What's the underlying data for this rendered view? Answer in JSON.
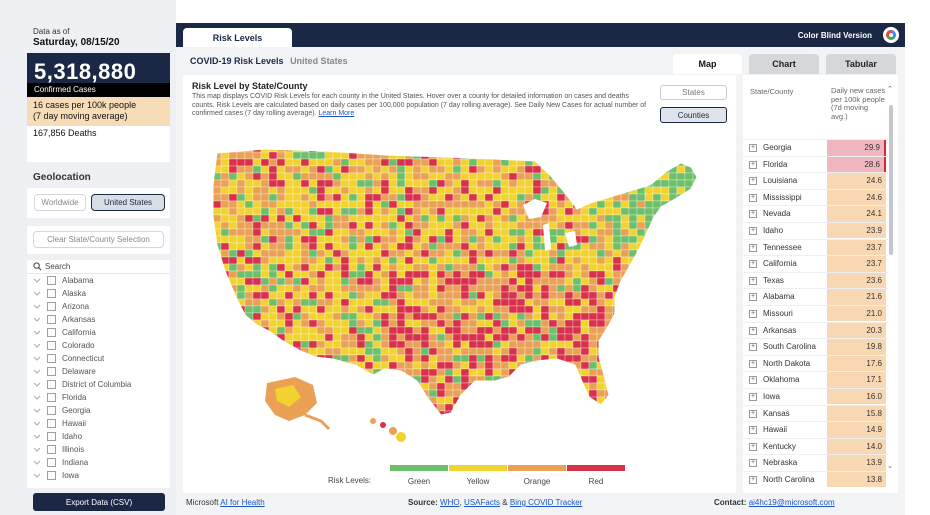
{
  "left": {
    "data_as_of_label": "Data as of",
    "data_date": "Saturday, 08/15/20",
    "confirmed_value": "5,318,880",
    "confirmed_label": "Confirmed Cases",
    "rate_line1": "16 cases per 100k people",
    "rate_line2": "(7 day moving average)",
    "deaths": "167,856 Deaths",
    "geolocation_label": "Geolocation",
    "geo_worldwide": "Worldwide",
    "geo_us": "United States",
    "clear_button": "Clear State/County Selection",
    "search_placeholder": "Search",
    "states": [
      "Alabama",
      "Alaska",
      "Arizona",
      "Arkansas",
      "California",
      "Colorado",
      "Connecticut",
      "Delaware",
      "District of Columbia",
      "Florida",
      "Georgia",
      "Hawaii",
      "Idaho",
      "Illinois",
      "Indiana",
      "Iowa"
    ],
    "export_button": "Export Data (CSV)"
  },
  "header": {
    "tab_label": "Risk Levels",
    "color_blind": "Color Blind Version"
  },
  "main": {
    "title": "COVID-19 Risk Levels",
    "subtitle": "United States",
    "view_tabs": [
      "Map",
      "Chart",
      "Tabular"
    ],
    "map_title": "Risk Level by State/County",
    "map_desc": "This map displays COVID Risk Levels for each county in the United States. Hover over a county for detailed information on cases and deaths counts. Risk Levels are calculated based on daily cases per 100,000 population (7 day rolling average). See Daily New Cases for actual number of confirmed cases (7 day rolling average).",
    "learn_more": "Learn More",
    "btn_states": "States",
    "btn_counties": "Counties",
    "legend_label": "Risk Levels:",
    "legend": [
      {
        "label": "Green",
        "color": "#6dbf6a"
      },
      {
        "label": "Yellow",
        "color": "#f2d22e"
      },
      {
        "label": "Orange",
        "color": "#eba155"
      },
      {
        "label": "Red",
        "color": "#d9314b"
      }
    ]
  },
  "table": {
    "col_state": "State/County",
    "col_daily": "Daily new cases per 100k people (7d moving avg.)",
    "rows": [
      {
        "state": "Georgia",
        "value": "29.9",
        "level": "red"
      },
      {
        "state": "Florida",
        "value": "28.6",
        "level": "red"
      },
      {
        "state": "Louisiana",
        "value": "24.6",
        "level": "orange"
      },
      {
        "state": "Mississippi",
        "value": "24.6",
        "level": "orange"
      },
      {
        "state": "Nevada",
        "value": "24.1",
        "level": "orange"
      },
      {
        "state": "Idaho",
        "value": "23.9",
        "level": "orange"
      },
      {
        "state": "Tennessee",
        "value": "23.7",
        "level": "orange"
      },
      {
        "state": "California",
        "value": "23.7",
        "level": "orange"
      },
      {
        "state": "Texas",
        "value": "23.6",
        "level": "orange"
      },
      {
        "state": "Alabama",
        "value": "21.6",
        "level": "orange"
      },
      {
        "state": "Missouri",
        "value": "21.0",
        "level": "orange"
      },
      {
        "state": "Arkansas",
        "value": "20.3",
        "level": "orange"
      },
      {
        "state": "South Carolina",
        "value": "19.8",
        "level": "orange"
      },
      {
        "state": "North Dakota",
        "value": "17.6",
        "level": "orange"
      },
      {
        "state": "Oklahoma",
        "value": "17.1",
        "level": "orange"
      },
      {
        "state": "Iowa",
        "value": "16.0",
        "level": "orange"
      },
      {
        "state": "Kansas",
        "value": "15.8",
        "level": "orange"
      },
      {
        "state": "Hawaii",
        "value": "14.9",
        "level": "orange"
      },
      {
        "state": "Kentucky",
        "value": "14.0",
        "level": "orange"
      },
      {
        "state": "Nebraska",
        "value": "13.9",
        "level": "orange"
      },
      {
        "state": "North Carolina",
        "value": "13.8",
        "level": "orange"
      }
    ],
    "level_colors": {
      "red": "#f0b6bf",
      "orange": "#f8d8b3"
    }
  },
  "footer": {
    "left_prefix": "Microsoft",
    "left_link": "AI for Health",
    "source_label": "Source:",
    "source_who": "WHO",
    "source_usafacts": "USAFacts",
    "source_amp": "&",
    "source_bing": "Bing COVID Tracker",
    "contact_label": "Contact:",
    "contact_email": "ai4hc19@microsoft.com"
  }
}
